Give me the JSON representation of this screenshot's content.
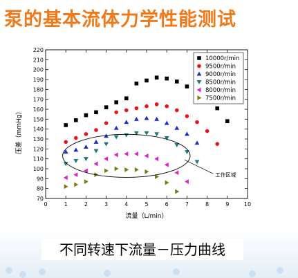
{
  "page": {
    "title": "泵的基本流体力学性能测试",
    "caption": "不同转速下流量－压力曲线"
  },
  "colors": {
    "title": "#f07a1a",
    "region_ellipse": "#000000"
  },
  "chart_data": {
    "type": "scatter",
    "title": "",
    "xlabel": "流量（L/min）",
    "ylabel": "压差（mmHg）",
    "xlim": [
      0,
      10
    ],
    "ylim": [
      70,
      220
    ],
    "x_ticks": [
      "0",
      "1",
      "2",
      "3",
      "4",
      "5",
      "6",
      "7",
      "8",
      "9",
      "10"
    ],
    "y_ticks": [
      "70",
      "80",
      "90",
      "100",
      "110",
      "120",
      "130",
      "140",
      "150",
      "160",
      "170",
      "180",
      "190",
      "200",
      "210",
      "220"
    ],
    "grid": false,
    "legend_position": "top-right",
    "annotation": "工作区域",
    "series": [
      {
        "name": "10000r/min",
        "marker": "square",
        "color": "#000000",
        "points": [
          [
            1.0,
            144
          ],
          [
            1.5,
            149
          ],
          [
            2.0,
            154
          ],
          [
            2.5,
            157
          ],
          [
            3.0,
            162
          ],
          [
            3.5,
            167
          ],
          [
            4.0,
            171
          ],
          [
            4.5,
            186
          ],
          [
            5.0,
            189
          ],
          [
            5.5,
            192
          ],
          [
            6.0,
            191
          ],
          [
            6.5,
            188
          ],
          [
            7.0,
            183
          ],
          [
            7.5,
            176
          ],
          [
            8.0,
            170
          ],
          [
            8.5,
            161
          ],
          [
            9.0,
            148
          ]
        ]
      },
      {
        "name": "9500r/min",
        "marker": "circle",
        "color": "#e8141a",
        "points": [
          [
            1.0,
            127
          ],
          [
            1.5,
            131
          ],
          [
            2.0,
            135
          ],
          [
            2.5,
            139
          ],
          [
            3.0,
            146
          ],
          [
            3.5,
            157
          ],
          [
            4.0,
            159
          ],
          [
            4.5,
            161
          ],
          [
            5.0,
            163
          ],
          [
            5.5,
            165
          ],
          [
            6.0,
            163
          ],
          [
            6.5,
            159
          ],
          [
            7.0,
            153
          ],
          [
            7.5,
            147
          ],
          [
            8.0,
            138
          ],
          [
            8.5,
            125
          ]
        ]
      },
      {
        "name": "9000r/min",
        "marker": "triangle-up",
        "color": "#1a2ecc",
        "points": [
          [
            1.0,
            117
          ],
          [
            1.5,
            119
          ],
          [
            2.0,
            122
          ],
          [
            2.5,
            127
          ],
          [
            3.0,
            133
          ],
          [
            3.5,
            141
          ],
          [
            4.0,
            147
          ],
          [
            4.5,
            150
          ],
          [
            5.0,
            151
          ],
          [
            5.5,
            150
          ],
          [
            6.0,
            146
          ],
          [
            6.5,
            141
          ],
          [
            7.0,
            135
          ],
          [
            7.5,
            126
          ]
        ]
      },
      {
        "name": "8500r/min",
        "marker": "triangle-down",
        "color": "#1a7a7a",
        "points": [
          [
            1.0,
            105
          ],
          [
            1.5,
            108
          ],
          [
            2.0,
            110
          ],
          [
            2.5,
            118
          ],
          [
            3.0,
            125
          ],
          [
            3.5,
            132
          ],
          [
            4.0,
            134
          ],
          [
            4.5,
            136
          ],
          [
            5.0,
            136
          ],
          [
            5.5,
            135
          ],
          [
            6.0,
            131
          ],
          [
            6.5,
            124
          ],
          [
            7.0,
            117
          ],
          [
            7.5,
            107
          ]
        ]
      },
      {
        "name": "8000r/min",
        "marker": "triangle-left",
        "color": "#e020c8",
        "points": [
          [
            1.0,
            91
          ],
          [
            1.5,
            94
          ],
          [
            2.0,
            98
          ],
          [
            2.5,
            105
          ],
          [
            3.0,
            110
          ],
          [
            3.5,
            114
          ],
          [
            4.0,
            115
          ],
          [
            4.5,
            115
          ],
          [
            5.0,
            113
          ],
          [
            5.5,
            110
          ],
          [
            6.0,
            104
          ],
          [
            6.5,
            96
          ],
          [
            7.0,
            87
          ]
        ]
      },
      {
        "name": "7500r/min",
        "marker": "triangle-right",
        "color": "#7a7a14",
        "points": [
          [
            1.0,
            82
          ],
          [
            1.5,
            84
          ],
          [
            2.0,
            87
          ],
          [
            2.5,
            94
          ],
          [
            3.0,
            98
          ],
          [
            3.5,
            100
          ],
          [
            4.0,
            99
          ],
          [
            4.5,
            99
          ],
          [
            5.0,
            97
          ],
          [
            5.5,
            92
          ],
          [
            6.0,
            86
          ],
          [
            6.5,
            77
          ]
        ]
      }
    ]
  }
}
